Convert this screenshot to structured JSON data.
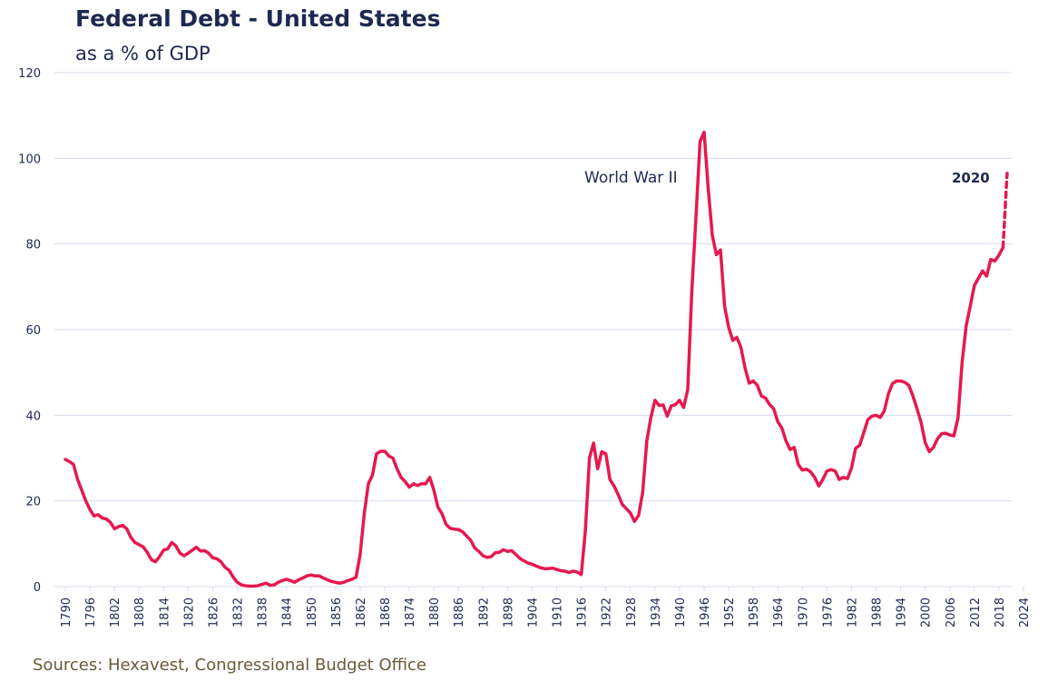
{
  "chart_data": {
    "type": "line",
    "title": "Federal Debt - United States",
    "subtitle": "as a % of GDP",
    "source": "Sources: Hexavest, Congressional Budget Office",
    "annotations": [
      "World War II",
      "2020"
    ],
    "xlim": [
      1790,
      2024
    ],
    "xticks": [
      1790,
      1796,
      1802,
      1808,
      1814,
      1820,
      1826,
      1832,
      1838,
      1844,
      1850,
      1856,
      1862,
      1868,
      1874,
      1880,
      1886,
      1892,
      1898,
      1904,
      1910,
      1916,
      1922,
      1928,
      1934,
      1940,
      1946,
      1952,
      1958,
      1964,
      1970,
      1976,
      1982,
      1988,
      1994,
      2000,
      2006,
      2012,
      2018,
      2024
    ],
    "ylim": [
      0,
      120
    ],
    "yticks": [
      0,
      20,
      40,
      60,
      80,
      100,
      120
    ],
    "grid": true,
    "series": [
      {
        "color": "#e5194f",
        "dashed": false,
        "x": [
          1790,
          1791,
          1792,
          1793,
          1794,
          1795,
          1796,
          1797,
          1798,
          1799,
          1800,
          1801,
          1802,
          1803,
          1804,
          1805,
          1806,
          1807,
          1808,
          1809,
          1810,
          1811,
          1812,
          1813,
          1814,
          1815,
          1816,
          1817,
          1818,
          1819,
          1820,
          1821,
          1822,
          1823,
          1824,
          1825,
          1826,
          1827,
          1828,
          1829,
          1830,
          1831,
          1832,
          1833,
          1834,
          1835,
          1836,
          1837,
          1838,
          1839,
          1840,
          1841,
          1842,
          1843,
          1844,
          1845,
          1846,
          1847,
          1848,
          1849,
          1850,
          1851,
          1852,
          1853,
          1854,
          1855,
          1856,
          1857,
          1858,
          1859,
          1860,
          1861,
          1862,
          1863,
          1864,
          1865,
          1866,
          1867,
          1868,
          1869,
          1870,
          1871,
          1872,
          1873,
          1874,
          1875,
          1876,
          1877,
          1878,
          1879,
          1880,
          1881,
          1882,
          1883,
          1884,
          1885,
          1886,
          1887,
          1888,
          1889,
          1890,
          1891,
          1892,
          1893,
          1894,
          1895,
          1896,
          1897,
          1898,
          1899,
          1900,
          1901,
          1902,
          1903,
          1904,
          1905,
          1906,
          1907,
          1908,
          1909,
          1910,
          1911,
          1912,
          1913,
          1914,
          1915,
          1916,
          1917,
          1918,
          1919,
          1920,
          1921,
          1922,
          1923,
          1924,
          1925,
          1926,
          1927,
          1928,
          1929,
          1930,
          1931,
          1932,
          1933,
          1934,
          1935,
          1936,
          1937,
          1938,
          1939,
          1940,
          1941,
          1942,
          1943,
          1944,
          1945,
          1946,
          1947,
          1948,
          1949,
          1950,
          1951,
          1952,
          1953,
          1954,
          1955,
          1956,
          1957,
          1958,
          1959,
          1960,
          1961,
          1962,
          1963,
          1964,
          1965,
          1966,
          1967,
          1968,
          1969,
          1970,
          1971,
          1972,
          1973,
          1974,
          1975,
          1976,
          1977,
          1978,
          1979,
          1980,
          1981,
          1982,
          1983,
          1984,
          1985,
          1986,
          1987,
          1988,
          1989,
          1990,
          1991,
          1992,
          1993,
          1994,
          1995,
          1996,
          1997,
          1998,
          1999,
          2000,
          2001,
          2002,
          2003,
          2004,
          2005,
          2006,
          2007,
          2008,
          2009,
          2010,
          2011,
          2012,
          2013,
          2014,
          2015,
          2016,
          2017,
          2018,
          2019
        ],
        "values": [
          29.7,
          29.2,
          28.5,
          25,
          22.5,
          20,
          18,
          16.5,
          16.8,
          16,
          15.8,
          15,
          13.5,
          14,
          14.3,
          13.5,
          11.5,
          10.3,
          9.8,
          9.3,
          8,
          6.3,
          5.8,
          7,
          8.5,
          8.8,
          10.3,
          9.5,
          7.8,
          7.2,
          7.8,
          8.5,
          9.2,
          8.3,
          8.4,
          7.8,
          6.7,
          6.5,
          5.8,
          4.5,
          3.8,
          2.2,
          1,
          0.4,
          0.2,
          0.1,
          0.1,
          0.2,
          0.5,
          0.8,
          0.3,
          0.4,
          1,
          1.4,
          1.7,
          1.4,
          1,
          1.6,
          2,
          2.5,
          2.7,
          2.5,
          2.5,
          2,
          1.6,
          1.2,
          1,
          0.8,
          1,
          1.4,
          1.7,
          2.2,
          7.5,
          17,
          24,
          26,
          31,
          31.6,
          31.6,
          30.5,
          30,
          27.5,
          25.5,
          24.5,
          23.2,
          24,
          23.6,
          24,
          24,
          25.5,
          22.5,
          18.5,
          17,
          14.5,
          13.6,
          13.4,
          13.3,
          12.8,
          11.8,
          10.8,
          9,
          8.2,
          7.2,
          6.8,
          7,
          7.9,
          8,
          8.6,
          8.2,
          8.4,
          7.5,
          6.6,
          6,
          5.5,
          5.2,
          4.8,
          4.4,
          4.2,
          4.2,
          4.3,
          4,
          3.7,
          3.6,
          3.3,
          3.6,
          3.4,
          2.8,
          13,
          30,
          33.5,
          27.5,
          31.5,
          31,
          25,
          23.5,
          21.5,
          19.2,
          18.2,
          17.2,
          15.2,
          16.6,
          22,
          34,
          39.5,
          43.5,
          42.3,
          42.4,
          39.8,
          42.2,
          42.5,
          43.5,
          41.8,
          46,
          69,
          86,
          103.9,
          106.1,
          93,
          82,
          77.5,
          78.6,
          65.5,
          60.5,
          57.5,
          58.2,
          55.8,
          51,
          47.5,
          48,
          47,
          44.5,
          44,
          42.5,
          41.5,
          38.5,
          37,
          34,
          32,
          32.5,
          28.5,
          27.2,
          27.4,
          26.8,
          25.5,
          23.5,
          25,
          27,
          27.3,
          27,
          25,
          25.5,
          25.2,
          27.7,
          32.3,
          33,
          36,
          39,
          39.8,
          40,
          39.5,
          41,
          45,
          47.4,
          48,
          48,
          47.7,
          47,
          44.5,
          41.5,
          38.3,
          33.6,
          31.5,
          32.5,
          34.5,
          35.7,
          35.8,
          35.4,
          35.2,
          39.3,
          52.3,
          60.9,
          65.5,
          70.3,
          72,
          73.7,
          72.5,
          76.4,
          76,
          77.4,
          79.2
        ]
      },
      {
        "color": "#e5194f",
        "dashed": true,
        "x": [
          2019,
          2020
        ],
        "values": [
          79.2,
          96.5
        ]
      }
    ]
  }
}
